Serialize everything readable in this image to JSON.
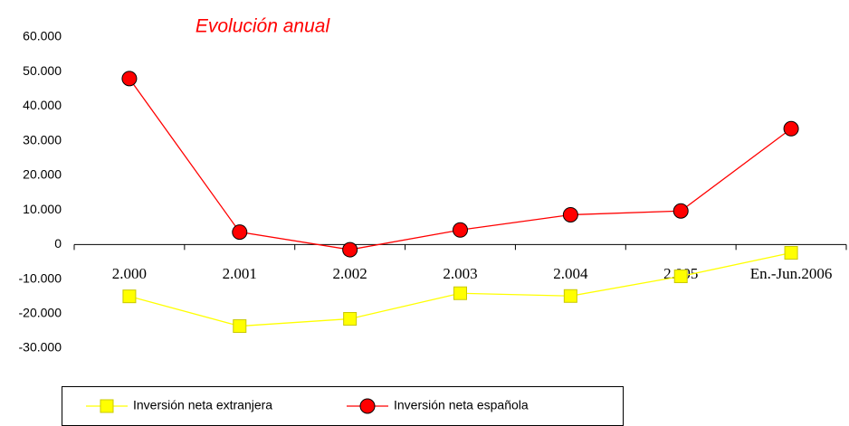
{
  "chart_data": {
    "type": "line",
    "title": "Evolución anual",
    "categories": [
      "2.000",
      "2.001",
      "2.002",
      "2.003",
      "2.004",
      "2.005",
      "En.-Jun.2006"
    ],
    "series": [
      {
        "name": "Inversión neta extranjera",
        "color": "#ffff00",
        "values": [
          -15000,
          -23600,
          -21500,
          -14100,
          -14900,
          -9200,
          -2400
        ]
      },
      {
        "name": "Inversión neta española",
        "color": "#ff0000",
        "values": [
          48000,
          3600,
          -1500,
          4200,
          8600,
          9700,
          33500
        ]
      }
    ],
    "ylim": [
      -30000,
      60000
    ],
    "yticks": [
      {
        "value": -30000,
        "label": "-30.000"
      },
      {
        "value": -20000,
        "label": "-20.000"
      },
      {
        "value": -10000,
        "label": "-10.000"
      },
      0,
      {
        "value": 10000,
        "label": "10.000"
      },
      {
        "value": 20000,
        "label": "20.000"
      },
      {
        "value": 30000,
        "label": "30.000"
      },
      {
        "value": 40000,
        "label": "40.000"
      },
      {
        "value": 50000,
        "label": "50.000"
      },
      {
        "value": 60000,
        "label": "60.000"
      }
    ],
    "grid": false
  }
}
